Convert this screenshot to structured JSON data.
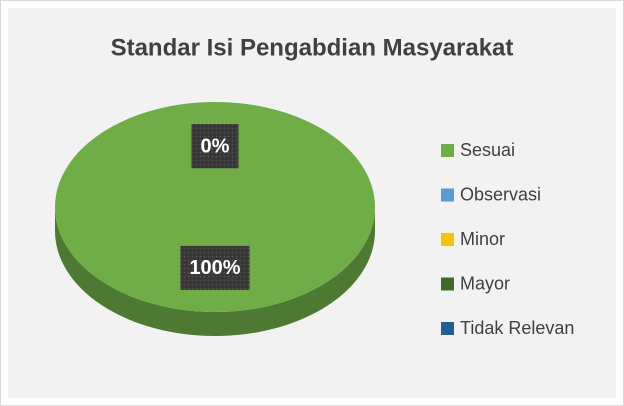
{
  "chart_data": {
    "type": "pie",
    "title": "Standar Isi Pengabdian Masyarakat",
    "categories": [
      "Sesuai",
      "Observasi",
      "Minor",
      "Mayor",
      "Tidak Relevan"
    ],
    "values": [
      100,
      0,
      0,
      0,
      0
    ],
    "value_labels": [
      "100%",
      "0%",
      "0%",
      "0%",
      "0%"
    ],
    "colors": [
      "#70ad47",
      "#5b9bd5",
      "#ffc000",
      "#3d6b2a",
      "#255e91"
    ],
    "legend": "right"
  }
}
